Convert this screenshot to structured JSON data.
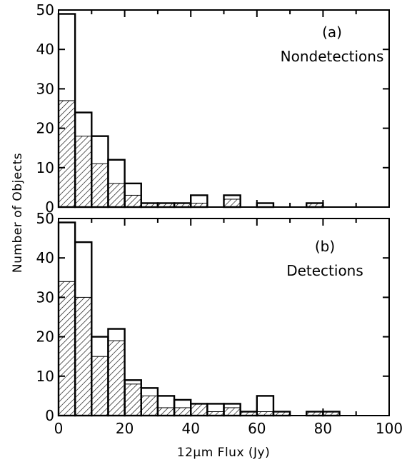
{
  "chart_data": {
    "type": "bar",
    "xlabel": "12μm Flux (Jy)",
    "ylabel": "Number of Objects",
    "x_ticks": [
      "0",
      "20",
      "40",
      "60",
      "80",
      "100"
    ],
    "xlim": [
      0,
      100
    ],
    "bin_width": 5,
    "bin_edges": [
      0,
      5,
      10,
      15,
      20,
      25,
      30,
      35,
      40,
      45,
      50,
      55,
      60,
      65,
      70,
      75,
      80,
      85,
      90,
      95,
      100
    ],
    "colors": {
      "line": "#000000",
      "hatch": "#000000",
      "background": "#ffffff"
    },
    "panels": [
      {
        "id": "a",
        "label": "(a)",
        "title": "Nondetections",
        "ylim": [
          0,
          50
        ],
        "y_ticks": [
          "0",
          "10",
          "20",
          "30",
          "40",
          "50"
        ],
        "series": [
          {
            "style": "open",
            "values": [
              49,
              24,
              18,
              12,
              6,
              1,
              1,
              1,
              3,
              0,
              3,
              0,
              1,
              0,
              0,
              1,
              0,
              0,
              0,
              0
            ]
          },
          {
            "style": "hatched",
            "values": [
              27,
              18,
              11,
              6,
              3,
              1,
              1,
              1,
              1,
              0,
              2,
              0,
              0,
              0,
              0,
              1,
              0,
              0,
              0,
              0
            ]
          }
        ]
      },
      {
        "id": "b",
        "label": "(b)",
        "title": "Detections",
        "ylim": [
          0,
          50
        ],
        "y_ticks": [
          "0",
          "10",
          "20",
          "30",
          "40",
          "50"
        ],
        "series": [
          {
            "style": "open",
            "values": [
              49,
              44,
              20,
              22,
              9,
              7,
              5,
              4,
              3,
              3,
              3,
              1,
              5,
              1,
              0,
              1,
              1,
              0,
              0,
              0
            ]
          },
          {
            "style": "hatched",
            "values": [
              34,
              30,
              15,
              19,
              8,
              5,
              2,
              2,
              3,
              1,
              2,
              1,
              1,
              1,
              0,
              1,
              1,
              0,
              0,
              0
            ]
          }
        ]
      }
    ]
  }
}
